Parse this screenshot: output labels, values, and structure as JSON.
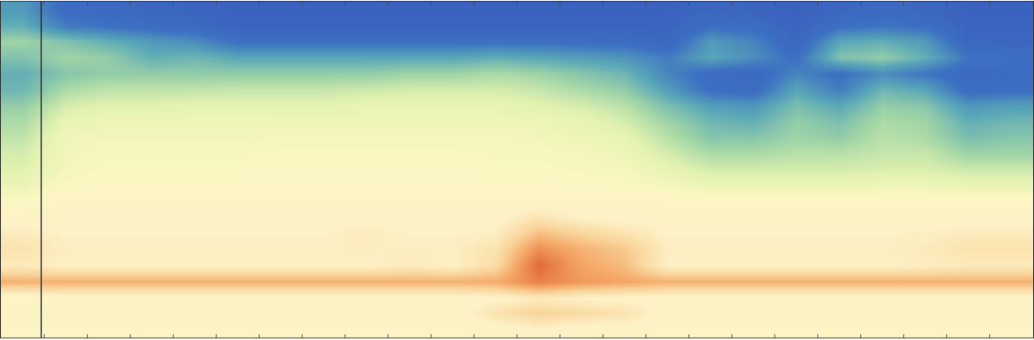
{
  "chart_data": {
    "type": "heatmap",
    "tick_labels": false,
    "grid": false,
    "xlim": [
      0,
      24
    ],
    "ylim": [
      0,
      21
    ],
    "xticks": [
      1,
      2,
      3,
      4,
      5,
      6,
      7,
      8,
      9,
      10,
      11,
      12,
      13,
      14,
      15,
      16,
      17,
      18,
      19,
      20,
      21,
      22,
      23
    ],
    "yticks": [],
    "zlim": [
      0,
      100
    ],
    "vlines": [
      0.94
    ],
    "x": [
      0.5,
      1.5,
      2.5,
      3.5,
      4.5,
      5.5,
      6.5,
      7.5,
      8.5,
      9.5,
      10.5,
      11.5,
      12.5,
      13.5,
      14.5,
      15.5,
      16.5,
      17.5,
      18.5,
      19.5,
      20.5,
      21.5,
      22.5,
      23.5
    ],
    "y": [
      20.5,
      19.5,
      18.5,
      17.5,
      16.5,
      15.5,
      14.5,
      13.5,
      12.5,
      11.5,
      10.5,
      9.5,
      8.5,
      7.5,
      6.5,
      5.5,
      4.5,
      3.5,
      2.5,
      1.5,
      0.5
    ],
    "z": [
      [
        25,
        12,
        10,
        8,
        6,
        4,
        4,
        4,
        4,
        4,
        4,
        4,
        4,
        4,
        4,
        4,
        8,
        6,
        4,
        8,
        10,
        8,
        4,
        4
      ],
      [
        30,
        18,
        15,
        12,
        10,
        6,
        6,
        6,
        6,
        6,
        6,
        6,
        6,
        6,
        6,
        6,
        14,
        12,
        6,
        14,
        16,
        14,
        6,
        6
      ],
      [
        40,
        35,
        30,
        25,
        22,
        14,
        14,
        14,
        14,
        14,
        14,
        14,
        14,
        13,
        12,
        9,
        25,
        20,
        8,
        28,
        30,
        25,
        8,
        8
      ],
      [
        35,
        40,
        38,
        30,
        32,
        28,
        28,
        28,
        28,
        28,
        28,
        30,
        28,
        26,
        24,
        18,
        28,
        22,
        14,
        35,
        38,
        30,
        16,
        14
      ],
      [
        30,
        36,
        38,
        38,
        38,
        38,
        38,
        38,
        38,
        40,
        40,
        42,
        40,
        36,
        32,
        20,
        12,
        10,
        20,
        14,
        22,
        16,
        10,
        12
      ],
      [
        32,
        42,
        45,
        45,
        45,
        46,
        46,
        46,
        47,
        48,
        48,
        48,
        46,
        42,
        38,
        26,
        14,
        12,
        28,
        18,
        32,
        28,
        12,
        14
      ],
      [
        38,
        48,
        50,
        50,
        51,
        51,
        51,
        51,
        52,
        52,
        52,
        52,
        50,
        48,
        44,
        34,
        26,
        24,
        34,
        28,
        38,
        36,
        24,
        26
      ],
      [
        42,
        52,
        54,
        54,
        54,
        54,
        54,
        54,
        54,
        54,
        54,
        54,
        54,
        52,
        48,
        40,
        32,
        30,
        38,
        34,
        42,
        40,
        30,
        32
      ],
      [
        45,
        55,
        55,
        55,
        55,
        55,
        56,
        56,
        56,
        56,
        56,
        56,
        55,
        54,
        52,
        44,
        36,
        36,
        40,
        38,
        44,
        42,
        34,
        36
      ],
      [
        48,
        55,
        57,
        57,
        57,
        57,
        58,
        58,
        58,
        58,
        58,
        57,
        57,
        56,
        54,
        48,
        42,
        42,
        44,
        44,
        46,
        46,
        40,
        40
      ],
      [
        50,
        56,
        58,
        58,
        58,
        58,
        59,
        59,
        59,
        59,
        59,
        58,
        58,
        57,
        56,
        52,
        48,
        48,
        48,
        48,
        49,
        49,
        47,
        47
      ],
      [
        53,
        58,
        60,
        60,
        60,
        60,
        60,
        60,
        60,
        60,
        60,
        60,
        60,
        59,
        58,
        56,
        53,
        53,
        53,
        53,
        54,
        54,
        52,
        52
      ],
      [
        58,
        62,
        62,
        62,
        62,
        62,
        62,
        62,
        62,
        62,
        62,
        62,
        62,
        62,
        62,
        61,
        60,
        60,
        60,
        60,
        60,
        60,
        60,
        60
      ],
      [
        62,
        63,
        63,
        63,
        63,
        64,
        63,
        63,
        63,
        63,
        63,
        63,
        68,
        64,
        63,
        63,
        62,
        62,
        62,
        62,
        62,
        62,
        62,
        62
      ],
      [
        66,
        64,
        64,
        64,
        64,
        64,
        64,
        64,
        66,
        64,
        64,
        65,
        76,
        72,
        68,
        64,
        64,
        64,
        64,
        64,
        64,
        65,
        66,
        66
      ],
      [
        68,
        65,
        65,
        65,
        65,
        65,
        65,
        65,
        65,
        65,
        65,
        68,
        84,
        78,
        74,
        65,
        65,
        65,
        65,
        65,
        65,
        66,
        68,
        68
      ],
      [
        66,
        64,
        64,
        64,
        64,
        64,
        64,
        64,
        64,
        66,
        64,
        70,
        90,
        80,
        76,
        64,
        64,
        64,
        64,
        64,
        64,
        65,
        66,
        66
      ],
      [
        78,
        78,
        78,
        78,
        78,
        78,
        78,
        78,
        78,
        78,
        78,
        79,
        86,
        82,
        80,
        78,
        78,
        78,
        78,
        78,
        78,
        78,
        78,
        78
      ],
      [
        60,
        62,
        62,
        62,
        62,
        62,
        62,
        62,
        62,
        62,
        62,
        63,
        66,
        64,
        63,
        62,
        62,
        62,
        62,
        62,
        62,
        62,
        62,
        62
      ],
      [
        62,
        62,
        62,
        62,
        62,
        62,
        62,
        62,
        62,
        62,
        62,
        68,
        72,
        70,
        68,
        62,
        62,
        62,
        62,
        62,
        62,
        62,
        62,
        62
      ],
      [
        61,
        61,
        61,
        61,
        61,
        61,
        61,
        61,
        61,
        61,
        61,
        62,
        64,
        62,
        62,
        61,
        61,
        61,
        61,
        61,
        61,
        61,
        61,
        61
      ]
    ]
  }
}
